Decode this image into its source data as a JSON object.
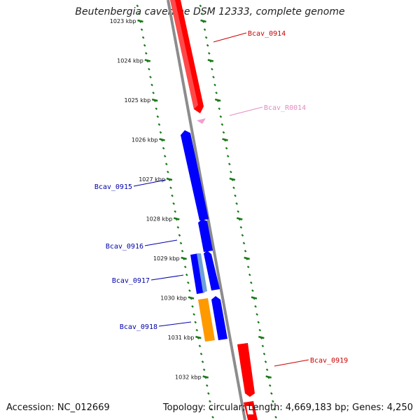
{
  "title": "Beutenbergia cavernae DSM 12333, complete genome",
  "accession": "Accession: NC_012669",
  "topology": "Topology: circular; Length: 4,669,183 bp; Genes: 4,250",
  "colors": {
    "backbone": "#8c8c8c",
    "forward_gene": "#ff0000",
    "reverse_gene": "#0000ff",
    "rrna": "#f29ed0",
    "other_gene": "#ff9900",
    "light_blue": "#6fa0d8",
    "tick": "#1a7a1a"
  },
  "ticks": [
    {
      "label": "1023 kbp",
      "kbp": 1023
    },
    {
      "label": "1024 kbp",
      "kbp": 1024
    },
    {
      "label": "1025 kbp",
      "kbp": 1025
    },
    {
      "label": "1026 kbp",
      "kbp": 1026
    },
    {
      "label": "1027 kbp",
      "kbp": 1027
    },
    {
      "label": "1028 kbp",
      "kbp": 1028
    },
    {
      "label": "1029 kbp",
      "kbp": 1029
    },
    {
      "label": "1030 kbp",
      "kbp": 1030
    },
    {
      "label": "1031 kbp",
      "kbp": 1031
    },
    {
      "label": "1032 kbp",
      "kbp": 1032
    }
  ],
  "labels": [
    {
      "text": "Bcav_0914",
      "color": "#cc0000"
    },
    {
      "text": "Bcav_R0014",
      "color": "#e48cc2"
    },
    {
      "text": "Bcav_0915",
      "color": "#0000aa"
    },
    {
      "text": "Bcav_0916",
      "color": "#0000aa"
    },
    {
      "text": "Bcav_0917",
      "color": "#0000aa"
    },
    {
      "text": "Bcav_0918",
      "color": "#0000aa"
    },
    {
      "text": "Bcav_0919",
      "color": "#cc0000"
    }
  ]
}
